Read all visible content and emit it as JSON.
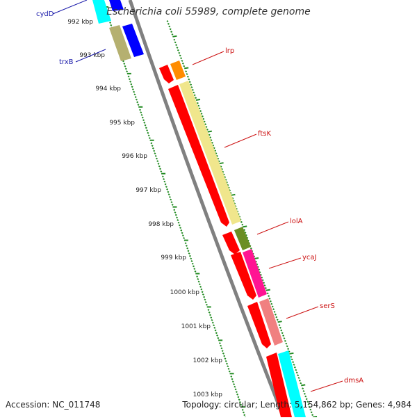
{
  "title": "Escherichia coli 55989, complete genome",
  "footer": {
    "accession": "Accession: NC_011748",
    "summary": "Topology: circular; Length: 5,154,862 bp; Genes: 4,984"
  },
  "scale": {
    "ticks": [
      "992 kbp",
      "993 kbp",
      "994 kbp",
      "995 kbp",
      "996 kbp",
      "997 kbp",
      "998 kbp",
      "999 kbp",
      "1000 kbp",
      "1001 kbp",
      "1002 kbp",
      "1003 kbp"
    ]
  },
  "genes_reverse": [
    {
      "name": "cydD",
      "label_color": "#1a1aaa"
    },
    {
      "name": "trxB",
      "label_color": "#1a1aaa"
    }
  ],
  "genes_forward": [
    {
      "name": "lrp",
      "label_color": "#cc1111"
    },
    {
      "name": "ftsK",
      "label_color": "#cc1111"
    },
    {
      "name": "lolA",
      "label_color": "#cc1111"
    },
    {
      "name": "ycaJ",
      "label_color": "#cc1111"
    },
    {
      "name": "serS",
      "label_color": "#cc1111"
    },
    {
      "name": "dmsA",
      "label_color": "#cc1111"
    }
  ],
  "colors": {
    "backbone": "#808080",
    "cds": "#ff0000",
    "gc_ticks": "#228b22",
    "cyan": "#00ffff",
    "blue": "#0000ff",
    "olive": "#b5b070",
    "orange": "#ff8c00",
    "khaki": "#f0e68c",
    "darkolive": "#6b8e23",
    "magenta": "#ff1493",
    "pink": "#f08080"
  }
}
